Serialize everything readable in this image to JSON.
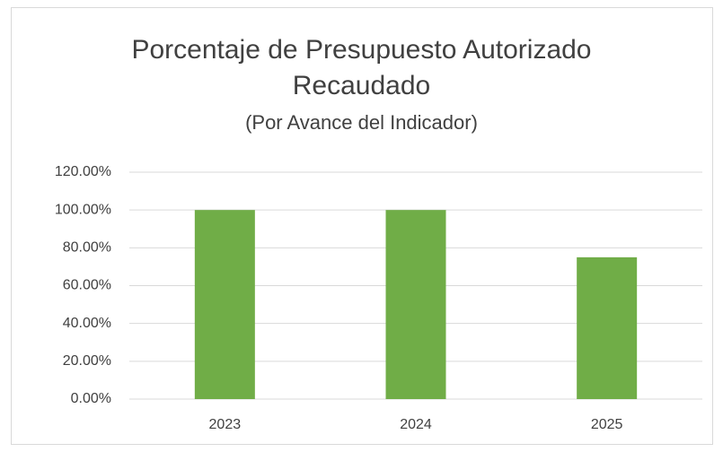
{
  "chart_data": {
    "type": "bar",
    "title": "Porcentaje de Presupuesto Autorizado Recaudado",
    "subtitle": "(Por Avance del Indicador)",
    "categories": [
      "2023",
      "2024",
      "2025"
    ],
    "values": [
      100,
      100,
      75
    ],
    "color": "#70ad47",
    "ylim": [
      0,
      120
    ],
    "yticks": [
      {
        "value": 0,
        "label": "0.00%"
      },
      {
        "value": 20,
        "label": "20.00%"
      },
      {
        "value": 40,
        "label": "40.00%"
      },
      {
        "value": 60,
        "label": "60.00%"
      },
      {
        "value": 80,
        "label": "80.00%"
      },
      {
        "value": 100,
        "label": "100.00%"
      },
      {
        "value": 120,
        "label": "120.00%"
      }
    ],
    "grid": true
  }
}
